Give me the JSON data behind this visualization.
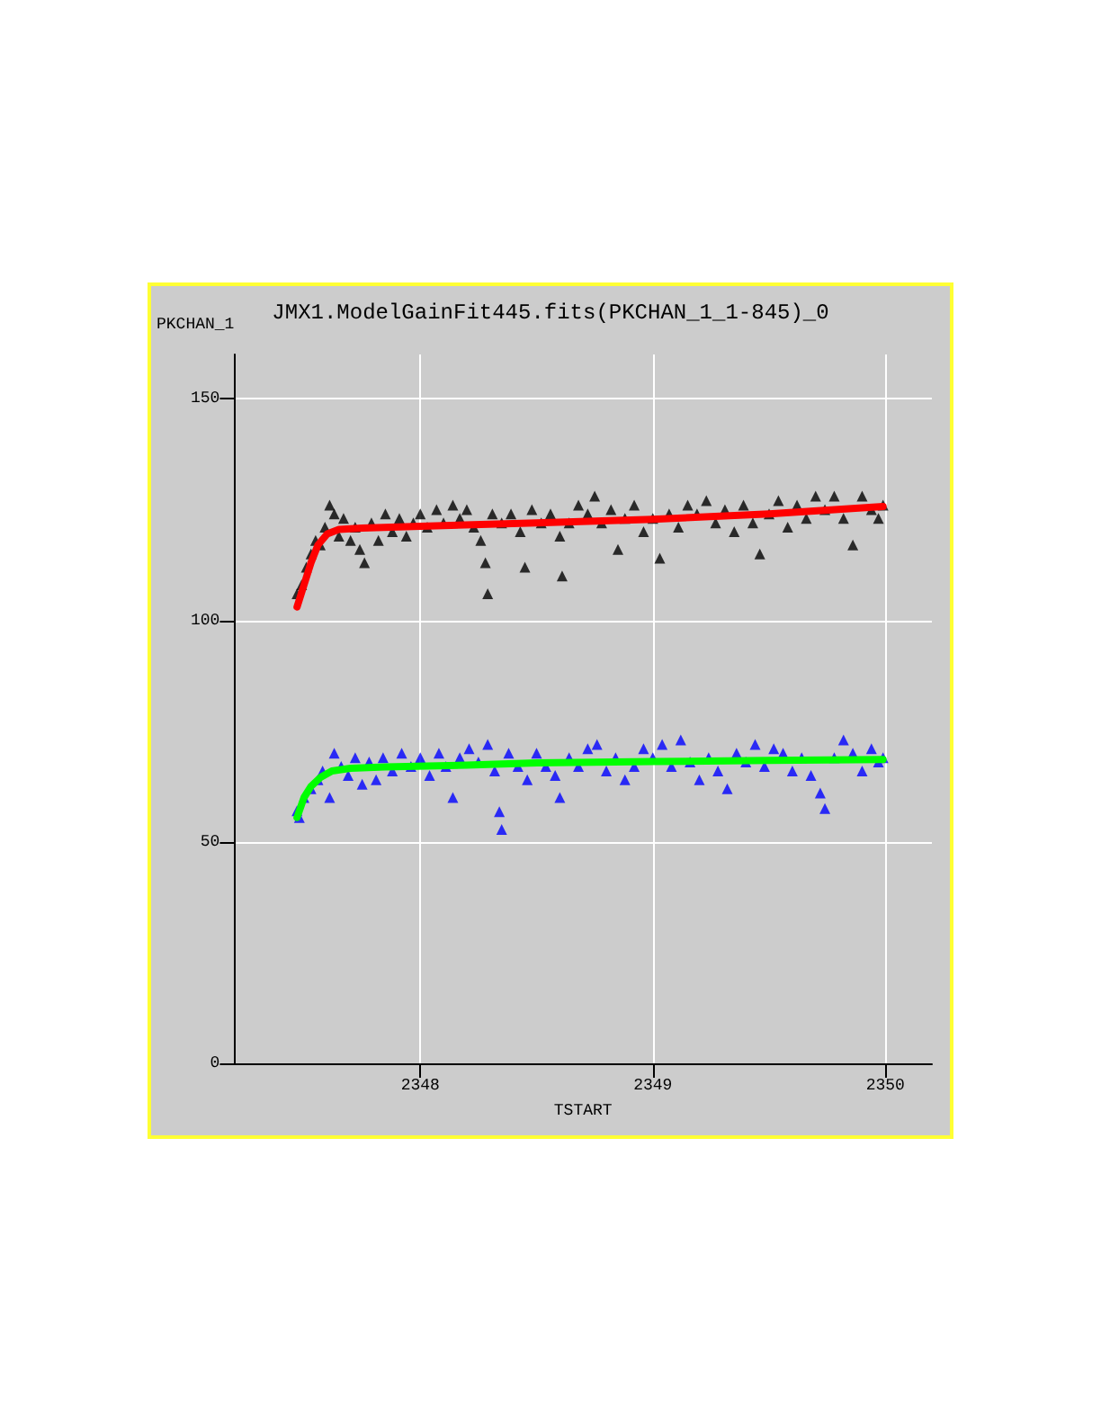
{
  "chart_data": {
    "type": "scatter",
    "title": "JMX1.ModelGainFit445.fits(PKCHAN_1_1-845)_0",
    "xlabel": "TSTART",
    "ylabel": "PKCHAN_1",
    "xlim": [
      2347.2,
      2350.2
    ],
    "xticks": [
      2348,
      2349,
      2350
    ],
    "ylim": [
      0,
      160
    ],
    "yticks": [
      0,
      50,
      100,
      150
    ],
    "grid": true,
    "marker": "triangle",
    "series": [
      {
        "color": "#000000",
        "x": [
          2347.47,
          2347.49,
          2347.51,
          2347.53,
          2347.55,
          2347.57,
          2347.59,
          2347.61,
          2347.63,
          2347.65,
          2347.67,
          2347.7,
          2347.72,
          2347.74,
          2347.76,
          2347.79,
          2347.82,
          2347.85,
          2347.88,
          2347.91,
          2347.94,
          2347.97,
          2348.0,
          2348.03,
          2348.07,
          2348.1,
          2348.14,
          2348.17,
          2348.2,
          2348.23,
          2348.26,
          2348.28,
          2348.29,
          2348.31,
          2348.35,
          2348.39,
          2348.43,
          2348.45,
          2348.48,
          2348.52,
          2348.56,
          2348.6,
          2348.61,
          2348.64,
          2348.68,
          2348.72,
          2348.75,
          2348.78,
          2348.82,
          2348.85,
          2348.88,
          2348.92,
          2348.96,
          2349.0,
          2349.03,
          2349.07,
          2349.11,
          2349.15,
          2349.19,
          2349.23,
          2349.27,
          2349.31,
          2349.35,
          2349.39,
          2349.43,
          2349.46,
          2349.5,
          2349.54,
          2349.58,
          2349.62,
          2349.66,
          2349.7,
          2349.74,
          2349.78,
          2349.82,
          2349.86,
          2349.9,
          2349.94,
          2349.97,
          2349.99
        ],
        "values": [
          106,
          108,
          112,
          115,
          118,
          117,
          121,
          126,
          124,
          119,
          123,
          118,
          121,
          116,
          113,
          122,
          118,
          124,
          120,
          123,
          119,
          122,
          124,
          121,
          125,
          122,
          126,
          123,
          125,
          121,
          118,
          113,
          106,
          124,
          122,
          124,
          120,
          112,
          125,
          122,
          124,
          119,
          110,
          122,
          126,
          124,
          128,
          122,
          125,
          116,
          123,
          126,
          120,
          123,
          114,
          124,
          121,
          126,
          124,
          127,
          122,
          125,
          120,
          126,
          122,
          115,
          124,
          127,
          121,
          126,
          123,
          128,
          125,
          128,
          123,
          117,
          128,
          125,
          123,
          126
        ]
      },
      {
        "type": "line",
        "marker": "none",
        "color": "#ff0000",
        "x": [
          2347.47,
          2347.5,
          2347.53,
          2347.56,
          2347.6,
          2347.65,
          2347.75,
          2348.0,
          2348.5,
          2349,
          2349.5,
          2349.99
        ],
        "values": [
          103,
          108,
          113,
          117,
          119.5,
          120.5,
          120.8,
          121.2,
          122,
          122.8,
          124,
          125.7
        ]
      },
      {
        "color": "#0000ff",
        "x": [
          2347.47,
          2347.48,
          2347.5,
          2347.53,
          2347.56,
          2347.58,
          2347.61,
          2347.63,
          2347.66,
          2347.69,
          2347.72,
          2347.75,
          2347.78,
          2347.81,
          2347.84,
          2347.88,
          2347.92,
          2347.96,
          2348.0,
          2348.04,
          2348.08,
          2348.11,
          2348.14,
          2348.17,
          2348.21,
          2348.25,
          2348.29,
          2348.32,
          2348.34,
          2348.35,
          2348.38,
          2348.42,
          2348.46,
          2348.5,
          2348.54,
          2348.58,
          2348.6,
          2348.64,
          2348.68,
          2348.72,
          2348.76,
          2348.8,
          2348.84,
          2348.88,
          2348.92,
          2348.96,
          2349.0,
          2349.04,
          2349.08,
          2349.12,
          2349.16,
          2349.2,
          2349.24,
          2349.28,
          2349.32,
          2349.36,
          2349.4,
          2349.44,
          2349.48,
          2349.52,
          2349.56,
          2349.6,
          2349.64,
          2349.68,
          2349.72,
          2349.74,
          2349.78,
          2349.82,
          2349.86,
          2349.9,
          2349.94,
          2349.97,
          2349.99
        ],
        "values": [
          57,
          55.5,
          60,
          62,
          64,
          66,
          60,
          70,
          67,
          65,
          69,
          63,
          68,
          64,
          69,
          66,
          70,
          67,
          69,
          65,
          70,
          67,
          60,
          69,
          71,
          68,
          72,
          66,
          56.8,
          52.8,
          70,
          67,
          64,
          70,
          67,
          65,
          60,
          69,
          67,
          71,
          72,
          66,
          69,
          64,
          67,
          71,
          69,
          72,
          67,
          73,
          68,
          64,
          69,
          66,
          62,
          70,
          68,
          72,
          67,
          71,
          70,
          66,
          69,
          65,
          61,
          57.5,
          69,
          73,
          70,
          66,
          71,
          68,
          69
        ]
      },
      {
        "type": "line",
        "marker": "none",
        "color": "#00ff00",
        "x": [
          2347.47,
          2347.5,
          2347.53,
          2347.57,
          2347.62,
          2347.7,
          2347.85,
          2348.2,
          2348.5,
          2349,
          2349.5,
          2349.99
        ],
        "values": [
          55.5,
          60,
          62.5,
          64.5,
          66,
          66.6,
          66.9,
          67.3,
          67.8,
          68.1,
          68.4,
          68.6
        ]
      }
    ]
  }
}
